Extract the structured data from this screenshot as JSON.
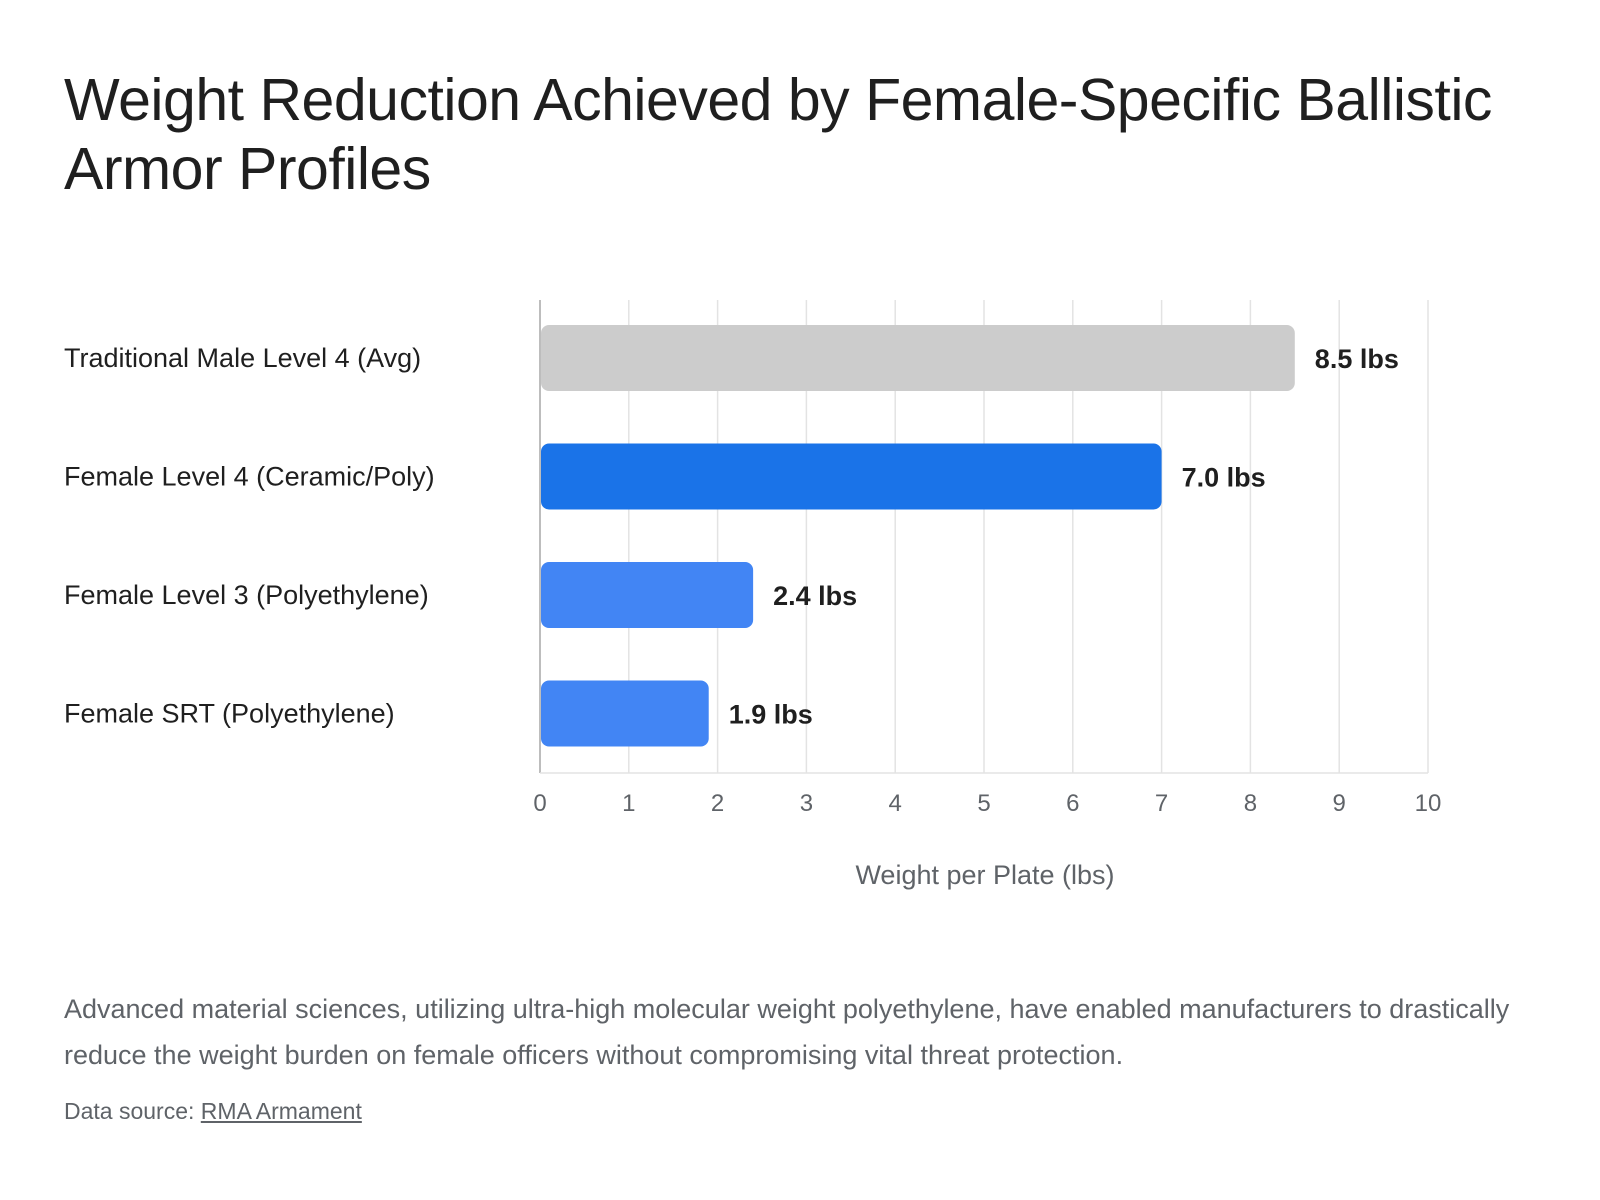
{
  "chart_data": {
    "type": "bar",
    "orientation": "horizontal",
    "title": "Weight Reduction Achieved by Female-Specific Ballistic Armor Profiles",
    "categories": [
      "Traditional Male Level 4 (Avg)",
      "Female Level 4 (Ceramic/Poly)",
      "Female Level 3 (Polyethylene)",
      "Female SRT (Polyethylene)"
    ],
    "values": [
      8.5,
      7.0,
      2.4,
      1.9
    ],
    "value_labels": [
      "8.5 lbs",
      "7.0 lbs",
      "2.4 lbs",
      "1.9 lbs"
    ],
    "colors": [
      "#cccccc",
      "#1a73e8",
      "#4285f4",
      "#4285f4"
    ],
    "xlabel": "Weight per Plate (lbs)",
    "ylabel": "",
    "xlim": [
      0,
      10
    ],
    "xticks": [
      "0",
      "1",
      "2",
      "3",
      "4",
      "5",
      "6",
      "7",
      "8",
      "9",
      "10"
    ],
    "grid": true,
    "legend": "none"
  },
  "caption": "Advanced material sciences, utilizing ultra-high molecular weight polyethylene, have enabled manufacturers to drastically reduce the weight burden on female officers without compromising vital threat protection.",
  "source": {
    "prefix": "Data source: ",
    "link_text": "RMA Armament"
  }
}
